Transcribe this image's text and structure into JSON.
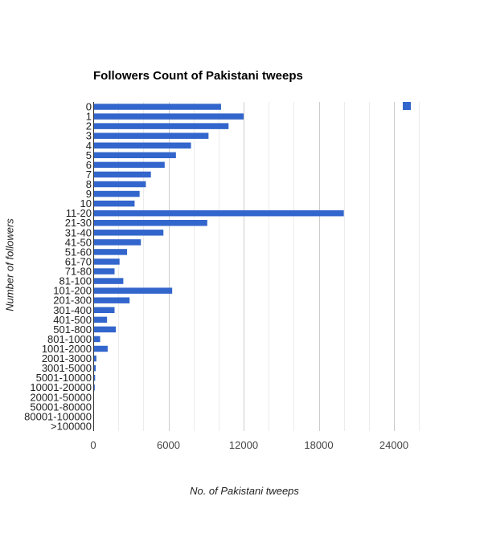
{
  "chart_data": {
    "type": "bar",
    "orientation": "horizontal",
    "title": "Followers Count of Pakistani tweeps",
    "xlabel": "No. of Pakistani tweeps",
    "ylabel": "Number of followers",
    "xlim": [
      0,
      27000
    ],
    "xticks": [
      0,
      6000,
      12000,
      18000,
      24000
    ],
    "xtick_labels": [
      "0",
      "6000",
      "12000",
      "18000",
      "24000"
    ],
    "grid": true,
    "legend": "top-right, swatch only",
    "series_color": "#3366cc",
    "categories": [
      "0",
      "1",
      "2",
      "3",
      "4",
      "5",
      "6",
      "7",
      "8",
      "9",
      "10",
      "11-20",
      "21-30",
      "31-40",
      "41-50",
      "51-60",
      "61-70",
      "71-80",
      "81-100",
      "101-200",
      "201-300",
      "301-400",
      "401-500",
      "501-800",
      "801-1000",
      "1001-2000",
      "2001-3000",
      "3001-5000",
      "5001-10000",
      "10001-20000",
      "20001-50000",
      "50001-80000",
      "80001-100000",
      ">100000"
    ],
    "values": [
      10200,
      12000,
      10800,
      9200,
      7800,
      6600,
      5700,
      4600,
      4200,
      3700,
      3300,
      20000,
      9100,
      5600,
      3800,
      2700,
      2100,
      1700,
      2400,
      6300,
      2900,
      1700,
      1100,
      1800,
      550,
      1150,
      250,
      200,
      150,
      120,
      60,
      20,
      10,
      5
    ]
  }
}
